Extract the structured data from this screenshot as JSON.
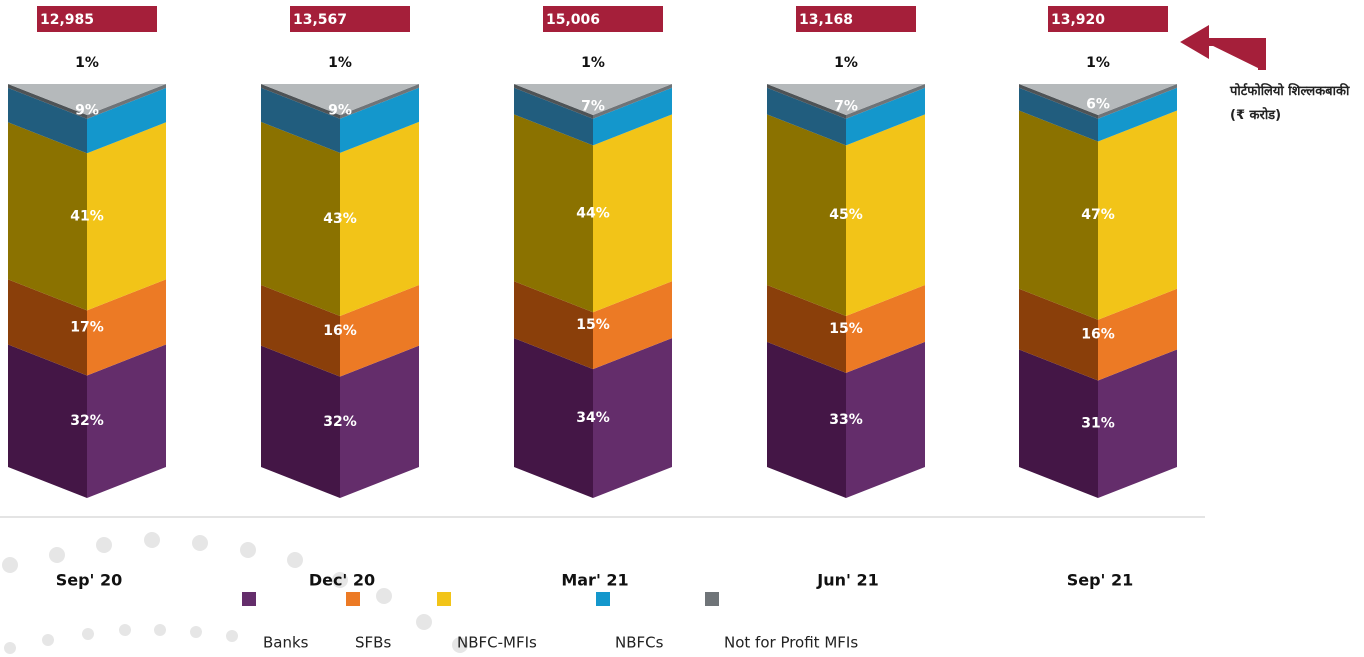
{
  "chart_data": {
    "type": "stacked-column-3d",
    "categories": [
      "Sep' 20",
      "Dec' 20",
      "Mar' 21",
      "Jun' 21",
      "Sep' 21"
    ],
    "series": [
      {
        "name": "Banks",
        "color": "#642d6b",
        "side_color": "#441646",
        "values": [
          32,
          32,
          34,
          33,
          31
        ],
        "value_labels": [
          "32%",
          "32%",
          "34%",
          "33%",
          "31%"
        ]
      },
      {
        "name": "SFBs",
        "color": "#ec7a25",
        "side_color": "#8a3f0a",
        "values": [
          17,
          16,
          15,
          15,
          16
        ],
        "value_labels": [
          "17%",
          "16%",
          "15%",
          "15%",
          "16%"
        ]
      },
      {
        "name": "NBFC-MFIs",
        "color": "#f2c418",
        "side_color": "#8b7200",
        "values": [
          41,
          43,
          44,
          45,
          47
        ],
        "value_labels": [
          "41%",
          "43%",
          "44%",
          "45%",
          "47%"
        ]
      },
      {
        "name": "NBFCs",
        "color": "#1497cc",
        "side_color": "#215d7e",
        "values": [
          9,
          9,
          7,
          7,
          6
        ],
        "value_labels": [
          "9%",
          "9%",
          "7%",
          "7%",
          "6%"
        ]
      },
      {
        "name": "Not for Profit MFIs",
        "color": "#6f7478",
        "side_color": "#4e5356",
        "values": [
          1,
          1,
          1,
          1,
          1
        ],
        "value_labels": [
          "1%",
          "1%",
          "1%",
          "1%",
          "1%"
        ]
      }
    ],
    "totals": {
      "values": [
        12985,
        13567,
        15006,
        13168,
        13920
      ],
      "value_labels": [
        "12,985",
        "13,567",
        "15,006",
        "13,168",
        "13,920"
      ],
      "color": "#a51f3a"
    },
    "annotation": "पोर्टफोलियो शिल्लकबाकी (₹ करोड)"
  }
}
